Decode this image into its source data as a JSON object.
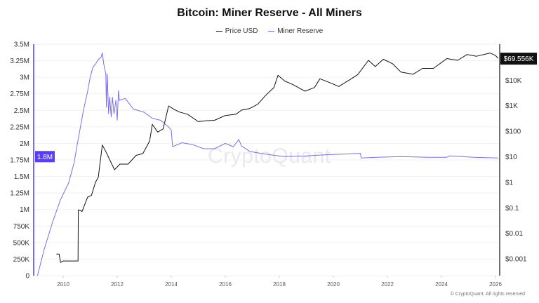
{
  "chart_data": {
    "type": "line",
    "title": "Bitcoin: Miner Reserve - All Miners",
    "legend_placement": "top-center",
    "grid": true,
    "x_ticks": [
      "2010",
      "2012",
      "2014",
      "2016",
      "2018",
      "2020",
      "2022",
      "2024",
      "2026"
    ],
    "xlim": [
      2008.9,
      2026.15
    ],
    "left_axis": {
      "ylim": [
        0,
        3500000
      ],
      "tick_labels": [
        "0",
        "250K",
        "500K",
        "750K",
        "1M",
        "1.25M",
        "1.5M",
        "1.75M",
        "2M",
        "2.25M",
        "2.5M",
        "2.75M",
        "3M",
        "3.25M",
        "3.5M"
      ],
      "current_label": "1.8M"
    },
    "right_axis": {
      "scale": "log",
      "ylim": [
        0.0005,
        130000
      ],
      "tick_labels": [
        "$0.001",
        "$0.01",
        "$0.1",
        "$1",
        "$10",
        "$100",
        "$1K",
        "$10K"
      ],
      "tick_values": [
        0.001,
        0.01,
        0.1,
        1,
        10,
        100,
        1000,
        10000
      ],
      "current_label": "$69.556K"
    },
    "series": [
      {
        "name": "Price USD",
        "axis": "right",
        "color": "#111111",
        "x": [
          2009.75,
          2009.85,
          2009.9,
          2010.0,
          2010.55,
          2010.56,
          2010.7,
          2010.9,
          2011.05,
          2011.2,
          2011.3,
          2011.45,
          2011.6,
          2011.8,
          2011.9,
          2012.1,
          2012.4,
          2012.7,
          2012.95,
          2013.2,
          2013.3,
          2013.5,
          2013.7,
          2013.9,
          2014.1,
          2014.3,
          2014.6,
          2015.0,
          2015.3,
          2015.6,
          2016.0,
          2016.4,
          2016.6,
          2016.9,
          2017.2,
          2017.5,
          2017.8,
          2017.95,
          2018.2,
          2018.5,
          2018.95,
          2019.3,
          2019.5,
          2019.9,
          2020.2,
          2020.6,
          2020.9,
          2021.3,
          2021.55,
          2021.85,
          2022.2,
          2022.5,
          2022.95,
          2023.3,
          2023.7,
          2024.2,
          2024.6,
          2024.95,
          2025.3,
          2025.8,
          2026.0,
          2026.1
        ],
        "y": [
          0.0015,
          0.0015,
          0.0007,
          0.0008,
          0.0008,
          0.08,
          0.07,
          0.25,
          0.3,
          1,
          1.5,
          28,
          14,
          5,
          3,
          5,
          5,
          11,
          13,
          40,
          180,
          90,
          120,
          950,
          700,
          550,
          450,
          230,
          250,
          260,
          400,
          450,
          650,
          750,
          1100,
          2500,
          5000,
          15000,
          9000,
          6500,
          3600,
          5000,
          11000,
          7500,
          5500,
          10000,
          16000,
          58000,
          33000,
          64000,
          42000,
          20000,
          16500,
          28000,
          28000,
          68000,
          58000,
          98000,
          84000,
          112000,
          90000,
          69556
        ]
      },
      {
        "name": "Miner Reserve",
        "axis": "left",
        "color": "#7b6cf6",
        "x": [
          2009.05,
          2009.3,
          2009.6,
          2009.9,
          2010.2,
          2010.4,
          2010.55,
          2010.75,
          2010.9,
          2011.0,
          2011.1,
          2011.2,
          2011.3,
          2011.4,
          2011.45,
          2011.5,
          2011.58,
          2011.6,
          2011.63,
          2011.68,
          2011.72,
          2011.78,
          2011.82,
          2011.88,
          2011.95,
          2012.0,
          2012.05,
          2012.08,
          2012.3,
          2012.6,
          2013.0,
          2013.3,
          2013.6,
          2013.9,
          2014.0,
          2014.05,
          2014.4,
          2014.8,
          2015.2,
          2015.6,
          2016.0,
          2016.3,
          2016.5,
          2016.6,
          2016.9,
          2017.3,
          2017.8,
          2018.2,
          2019.0,
          2019.8,
          2020.5,
          2021.0,
          2021.03,
          2021.6,
          2022.5,
          2023.5,
          2024.2,
          2024.3,
          2025.2,
          2026.1
        ],
        "y": [
          0,
          400000,
          800000,
          1150000,
          1400000,
          1700000,
          2050000,
          2500000,
          2780000,
          3000000,
          3150000,
          3200000,
          3270000,
          3300000,
          3370000,
          3200000,
          3050000,
          2550000,
          3050000,
          2450000,
          2700000,
          2400000,
          2700000,
          2450000,
          2650000,
          2350000,
          2800000,
          2650000,
          2680000,
          2520000,
          2470000,
          2380000,
          2350000,
          2250000,
          2200000,
          1950000,
          2010000,
          1980000,
          1920000,
          1920000,
          2000000,
          1950000,
          2060000,
          1960000,
          1880000,
          1850000,
          1820000,
          1800000,
          1810000,
          1830000,
          1840000,
          1850000,
          1780000,
          1790000,
          1800000,
          1790000,
          1790000,
          1810000,
          1790000,
          1780000
        ]
      }
    ]
  },
  "watermark": "CryptoQuant",
  "copyright": "© CryptoQuant. All rights reserved"
}
